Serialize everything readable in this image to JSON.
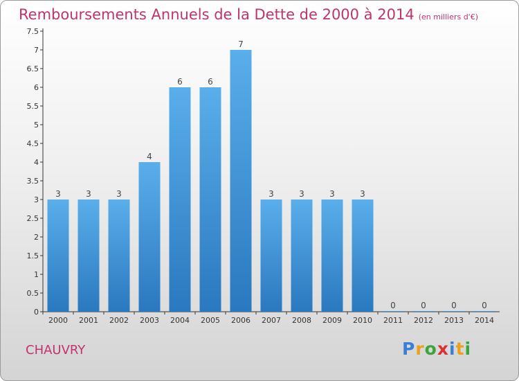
{
  "title": "Remboursements Annuels de la Dette de 2000 à 2014",
  "unit_note": "(en milliers d'€)",
  "town": "CHAUVRY",
  "brand": {
    "letters": [
      {
        "ch": "P",
        "color": "#3a7fd4"
      },
      {
        "ch": "r",
        "color": "#e8a21d"
      },
      {
        "ch": "o",
        "color": "#3aa63a"
      },
      {
        "ch": "x",
        "color": "#d9322e"
      },
      {
        "ch": "i",
        "color": "#3a7fd4"
      },
      {
        "ch": "t",
        "color": "#e8a21d"
      },
      {
        "ch": "i",
        "color": "#3aa63a"
      }
    ]
  },
  "colors": {
    "title": "#c0336e",
    "bar_top": "#5aaeea",
    "bar_bottom": "#2a78bf"
  },
  "chart_data": {
    "type": "bar",
    "categories": [
      "2000",
      "2001",
      "2002",
      "2003",
      "2004",
      "2005",
      "2006",
      "2007",
      "2008",
      "2009",
      "2010",
      "2011",
      "2012",
      "2013",
      "2014"
    ],
    "values": [
      3,
      3,
      3,
      4,
      6,
      6,
      7,
      3,
      3,
      3,
      3,
      0,
      0,
      0,
      0
    ],
    "y_ticks": [
      "0",
      "0.5",
      "1",
      "1.5",
      "2",
      "2.5",
      "3",
      "3.5",
      "4",
      "4.5",
      "5",
      "5.5",
      "6",
      "6.5",
      "7",
      "7.5"
    ],
    "ylim": [
      0,
      7.5
    ],
    "data_labels": true,
    "grid": false
  }
}
